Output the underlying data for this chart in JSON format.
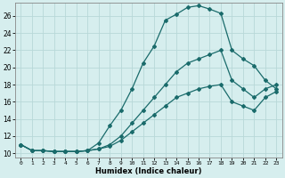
{
  "xlabel": "Humidex (Indice chaleur)",
  "bg_color": "#d6eeee",
  "grid_color": "#b8d8d8",
  "line_color": "#1a6b6b",
  "xlim": [
    -0.5,
    23.5
  ],
  "ylim": [
    9.5,
    27.5
  ],
  "xticks": [
    0,
    1,
    2,
    3,
    4,
    5,
    6,
    7,
    8,
    9,
    10,
    11,
    12,
    13,
    14,
    15,
    16,
    17,
    18,
    19,
    20,
    21,
    22,
    23
  ],
  "yticks": [
    10,
    12,
    14,
    16,
    18,
    20,
    22,
    24,
    26
  ],
  "line1_x": [
    0,
    1,
    2,
    3,
    4,
    5,
    6,
    7,
    8,
    9,
    10,
    11,
    12,
    13,
    14,
    15,
    16,
    17,
    18,
    19,
    20,
    21,
    22,
    23
  ],
  "line1_y": [
    11.0,
    10.3,
    10.3,
    10.2,
    10.2,
    10.2,
    10.3,
    11.2,
    13.2,
    15.0,
    17.5,
    20.5,
    22.5,
    25.5,
    26.2,
    27.0,
    27.2,
    26.8,
    26.3,
    22.0,
    21.0,
    20.2,
    18.5,
    17.5
  ],
  "line2_x": [
    0,
    1,
    2,
    3,
    4,
    5,
    6,
    7,
    8,
    9,
    10,
    11,
    12,
    13,
    14,
    15,
    16,
    17,
    18,
    19,
    20,
    21,
    22,
    23
  ],
  "line2_y": [
    11.0,
    10.3,
    10.3,
    10.2,
    10.2,
    10.2,
    10.3,
    10.5,
    11.0,
    12.0,
    13.5,
    15.0,
    16.5,
    18.0,
    19.5,
    20.5,
    21.0,
    21.5,
    22.0,
    18.5,
    17.5,
    16.5,
    17.5,
    18.0
  ],
  "line3_x": [
    0,
    1,
    2,
    3,
    4,
    5,
    6,
    7,
    8,
    9,
    10,
    11,
    12,
    13,
    14,
    15,
    16,
    17,
    18,
    19,
    20,
    21,
    22,
    23
  ],
  "line3_y": [
    11.0,
    10.3,
    10.3,
    10.2,
    10.2,
    10.2,
    10.3,
    10.5,
    10.8,
    11.5,
    12.5,
    13.5,
    14.5,
    15.5,
    16.5,
    17.0,
    17.5,
    17.8,
    18.0,
    16.0,
    15.5,
    15.0,
    16.5,
    17.2
  ]
}
